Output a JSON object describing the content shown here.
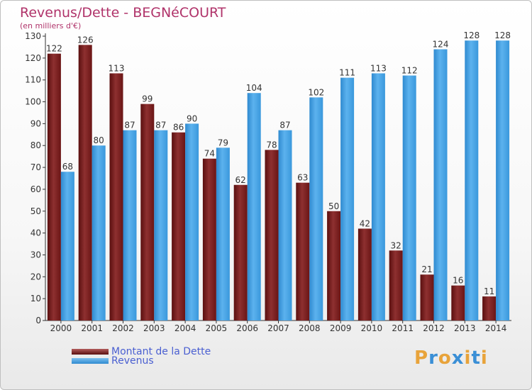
{
  "chart_data": {
    "type": "bar",
    "title": "Revenus/Dette - BEGNéCOURT",
    "subtitle": "(en milliers d'€)",
    "categories": [
      "2000",
      "2001",
      "2002",
      "2003",
      "2004",
      "2005",
      "2006",
      "2007",
      "2008",
      "2009",
      "2010",
      "2011",
      "2012",
      "2013",
      "2014"
    ],
    "series": [
      {
        "name": "Montant de la Dette",
        "color": "#7a1c1c",
        "values": [
          122,
          126,
          113,
          99,
          86,
          74,
          62,
          78,
          63,
          50,
          42,
          32,
          21,
          16,
          11
        ]
      },
      {
        "name": "Revenus",
        "color": "#3f9de0",
        "values": [
          68,
          80,
          87,
          87,
          90,
          79,
          104,
          87,
          102,
          111,
          113,
          112,
          124,
          128,
          128
        ]
      }
    ],
    "ylim": [
      0,
      130
    ],
    "yticks": [
      0,
      10,
      20,
      30,
      40,
      50,
      60,
      70,
      80,
      90,
      100,
      110,
      120,
      130
    ],
    "grid": false,
    "legend_position": "bottom-left"
  },
  "logo": {
    "text": "Proxiti",
    "letter_colors": [
      "#e8a33a",
      "#3a8fd6",
      "#e8a33a",
      "#3a8fd6",
      "#e8a33a",
      "#3a8fd6",
      "#e8a33a"
    ]
  }
}
